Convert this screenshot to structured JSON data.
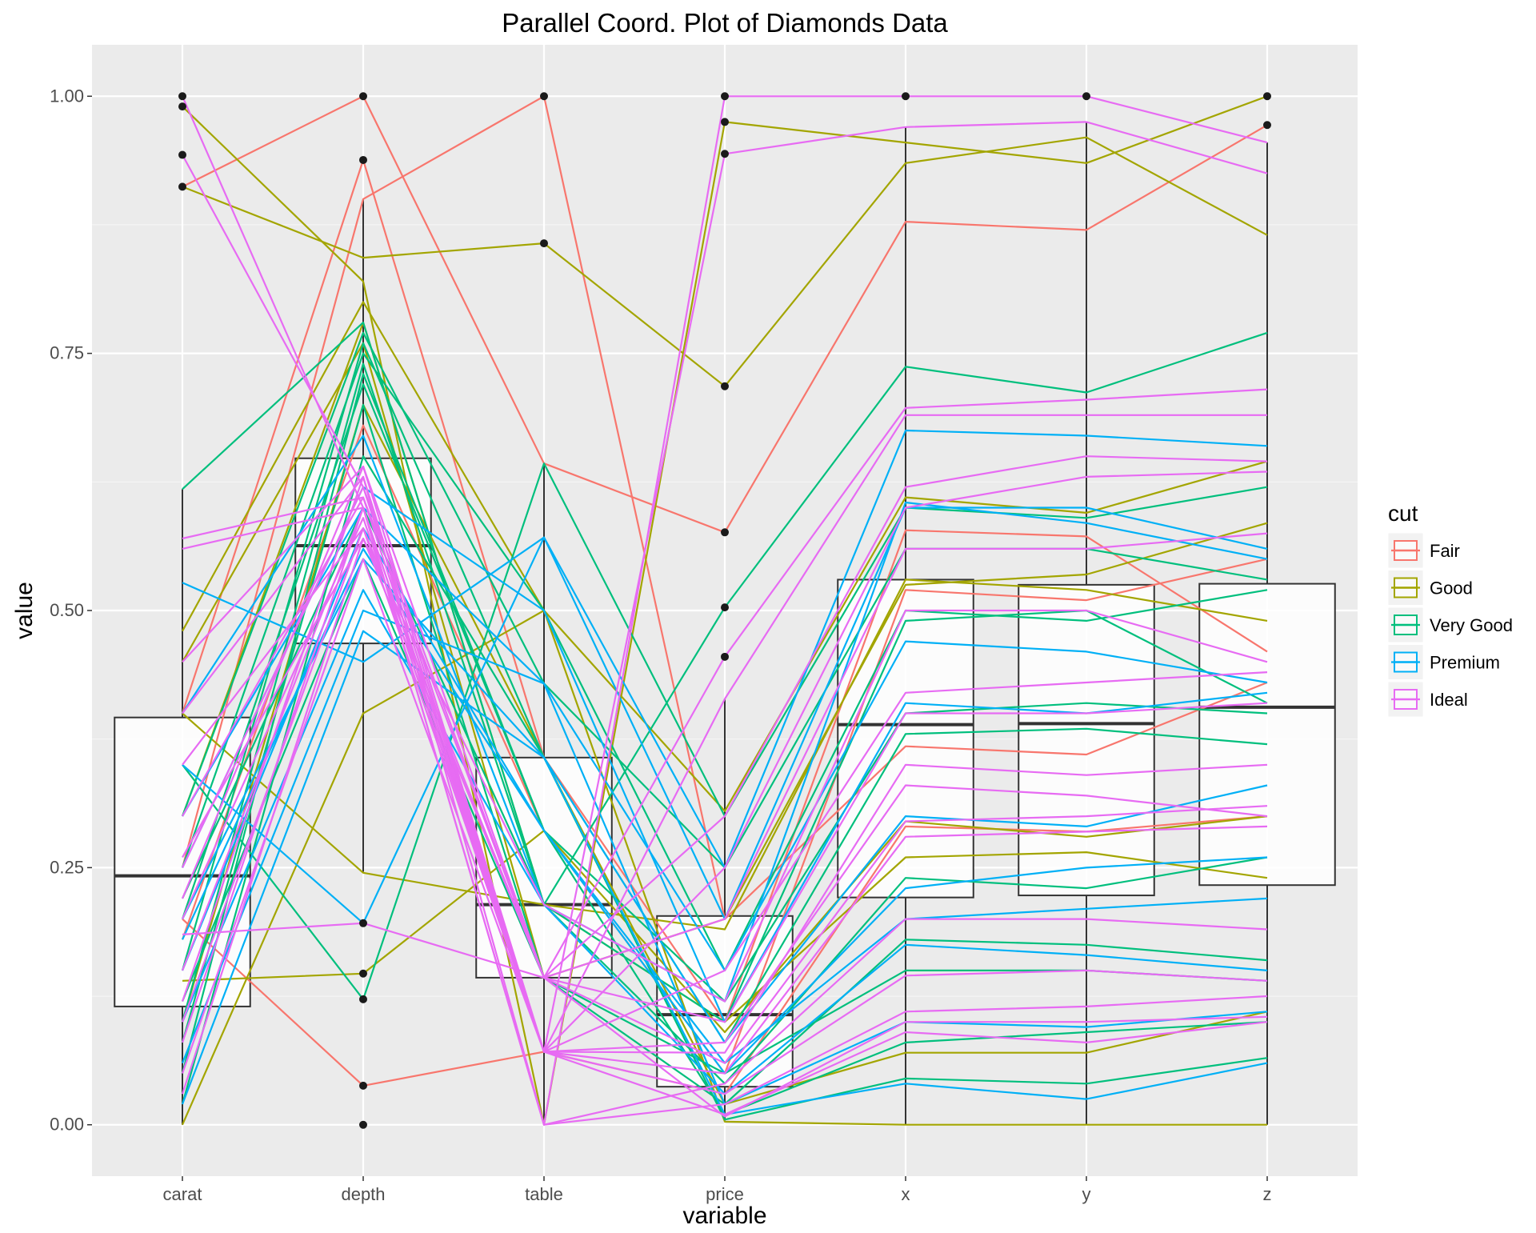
{
  "chart_data": {
    "type": "parallel-coordinates",
    "title": "Parallel Coord. Plot of Diamonds Data",
    "xlabel": "variable",
    "ylabel": "value",
    "ylim": [
      -0.05,
      1.05
    ],
    "yticks": [
      0.0,
      0.25,
      0.5,
      0.75,
      1.0
    ],
    "ytick_labels": [
      "0.00",
      "0.25",
      "0.50",
      "0.75",
      "1.00"
    ],
    "categories": [
      "carat",
      "depth",
      "table",
      "price",
      "x",
      "y",
      "z"
    ],
    "grid": true,
    "legend": {
      "title": "cut",
      "position": "right",
      "entries": [
        {
          "label": "Fair",
          "color": "#F8766D"
        },
        {
          "label": "Good",
          "color": "#A3A500"
        },
        {
          "label": "Very Good",
          "color": "#00BF7D"
        },
        {
          "label": "Premium",
          "color": "#00B0F6"
        },
        {
          "label": "Ideal",
          "color": "#E76BF3"
        }
      ]
    },
    "boxplots": [
      {
        "variable": "carat",
        "lower_whisker": 0.0,
        "q1": 0.115,
        "median": 0.242,
        "q3": 0.396,
        "upper_whisker": 0.618
      },
      {
        "variable": "depth",
        "lower_whisker": 0.246,
        "q1": 0.468,
        "median": 0.563,
        "q3": 0.648,
        "upper_whisker": 0.9
      },
      {
        "variable": "table",
        "lower_whisker": 0.0,
        "q1": 0.143,
        "median": 0.214,
        "q3": 0.357,
        "upper_whisker": 0.643
      },
      {
        "variable": "price",
        "lower_whisker": 0.004,
        "q1": 0.037,
        "median": 0.107,
        "q3": 0.203,
        "upper_whisker": 0.414
      },
      {
        "variable": "x",
        "lower_whisker": 0.0,
        "q1": 0.221,
        "median": 0.389,
        "q3": 0.53,
        "upper_whisker": 0.97
      },
      {
        "variable": "y",
        "lower_whisker": 0.0,
        "q1": 0.223,
        "median": 0.39,
        "q3": 0.525,
        "upper_whisker": 0.975
      },
      {
        "variable": "z",
        "lower_whisker": 0.0,
        "q1": 0.233,
        "median": 0.406,
        "q3": 0.526,
        "upper_whisker": 0.955
      }
    ],
    "outliers": [
      {
        "variable": "carat",
        "values": [
          1.0,
          0.99,
          0.943,
          0.912
        ]
      },
      {
        "variable": "depth",
        "values": [
          1.0,
          0.938,
          0.196,
          0.147,
          0.122,
          0.038,
          0.0
        ]
      },
      {
        "variable": "table",
        "values": [
          1.0,
          0.857
        ]
      },
      {
        "variable": "price",
        "values": [
          1.0,
          0.975,
          0.944,
          0.718,
          0.576,
          0.503,
          0.455
        ]
      },
      {
        "variable": "x",
        "values": [
          1.0
        ]
      },
      {
        "variable": "y",
        "values": [
          1.0
        ]
      },
      {
        "variable": "z",
        "values": [
          1.0,
          0.972
        ]
      }
    ],
    "series": [
      {
        "name": "Fair",
        "lines": [
          [
            0.912,
            1.0,
            0.643,
            0.576,
            0.878,
            0.87,
            0.972
          ],
          [
            0.4,
            0.938,
            0.357,
            0.1,
            0.578,
            0.572,
            0.46
          ],
          [
            0.25,
            0.9,
            1.0,
            0.2,
            0.368,
            0.36,
            0.43
          ],
          [
            0.2,
            0.038,
            0.071,
            0.03,
            0.29,
            0.285,
            0.3
          ],
          [
            0.18,
            0.68,
            0.286,
            0.05,
            0.52,
            0.51,
            0.55
          ]
        ]
      },
      {
        "name": "Good",
        "lines": [
          [
            0.99,
            0.82,
            0.0,
            0.975,
            0.955,
            0.935,
            1.0
          ],
          [
            0.912,
            0.843,
            0.857,
            0.718,
            0.935,
            0.96,
            0.865
          ],
          [
            0.48,
            0.8,
            0.5,
            0.305,
            0.61,
            0.595,
            0.645
          ],
          [
            0.4,
            0.245,
            0.214,
            0.19,
            0.53,
            0.52,
            0.49
          ],
          [
            0.14,
            0.147,
            0.286,
            0.09,
            0.295,
            0.28,
            0.3
          ],
          [
            0.0,
            0.4,
            0.5,
            0.003,
            0.0,
            0.0,
            0.0
          ],
          [
            0.3,
            0.78,
            0.214,
            0.1,
            0.26,
            0.265,
            0.24
          ],
          [
            0.1,
            0.7,
            0.357,
            0.02,
            0.07,
            0.07,
            0.11
          ],
          [
            0.45,
            0.76,
            0.143,
            0.2,
            0.525,
            0.535,
            0.585
          ]
        ]
      },
      {
        "name": "Very Good",
        "lines": [
          [
            0.618,
            0.78,
            0.214,
            0.503,
            0.737,
            0.712,
            0.77
          ],
          [
            0.35,
            0.122,
            0.643,
            0.3,
            0.6,
            0.59,
            0.62
          ],
          [
            0.25,
            0.75,
            0.5,
            0.15,
            0.5,
            0.49,
            0.52
          ],
          [
            0.2,
            0.72,
            0.286,
            0.12,
            0.4,
            0.41,
            0.4
          ],
          [
            0.15,
            0.76,
            0.357,
            0.08,
            0.38,
            0.385,
            0.37
          ],
          [
            0.1,
            0.74,
            0.214,
            0.04,
            0.24,
            0.23,
            0.26
          ],
          [
            0.08,
            0.7,
            0.143,
            0.02,
            0.18,
            0.175,
            0.16
          ],
          [
            0.05,
            0.73,
            0.286,
            0.01,
            0.08,
            0.09,
            0.1
          ],
          [
            0.02,
            0.65,
            0.357,
            0.005,
            0.045,
            0.04,
            0.065
          ],
          [
            0.3,
            0.77,
            0.429,
            0.25,
            0.56,
            0.56,
            0.53
          ],
          [
            0.22,
            0.6,
            0.214,
            0.1,
            0.49,
            0.5,
            0.41
          ],
          [
            0.12,
            0.55,
            0.143,
            0.05,
            0.15,
            0.15,
            0.14
          ]
        ]
      },
      {
        "name": "Premium",
        "lines": [
          [
            0.527,
            0.45,
            0.571,
            0.25,
            0.675,
            0.67,
            0.66
          ],
          [
            0.35,
            0.196,
            0.571,
            0.2,
            0.6,
            0.6,
            0.56
          ],
          [
            0.3,
            0.6,
            0.429,
            0.15,
            0.47,
            0.46,
            0.43
          ],
          [
            0.25,
            0.62,
            0.5,
            0.1,
            0.41,
            0.4,
            0.42
          ],
          [
            0.2,
            0.55,
            0.357,
            0.08,
            0.3,
            0.29,
            0.33
          ],
          [
            0.15,
            0.58,
            0.286,
            0.05,
            0.23,
            0.25,
            0.26
          ],
          [
            0.1,
            0.52,
            0.214,
            0.03,
            0.175,
            0.165,
            0.15
          ],
          [
            0.06,
            0.5,
            0.429,
            0.02,
            0.1,
            0.095,
            0.11
          ],
          [
            0.02,
            0.48,
            0.357,
            0.01,
            0.04,
            0.025,
            0.06
          ],
          [
            0.4,
            0.67,
            0.214,
            0.12,
            0.605,
            0.585,
            0.55
          ],
          [
            0.18,
            0.56,
            0.286,
            0.06,
            0.2,
            0.21,
            0.22
          ]
        ]
      },
      {
        "name": "Ideal",
        "lines": [
          [
            1.0,
            0.6,
            0.0,
            1.0,
            1.0,
            1.0,
            0.955
          ],
          [
            0.943,
            0.62,
            0.071,
            0.944,
            0.97,
            0.975,
            0.925
          ],
          [
            0.57,
            0.61,
            0.143,
            0.455,
            0.697,
            0.705,
            0.715
          ],
          [
            0.56,
            0.6,
            0.071,
            0.414,
            0.69,
            0.69,
            0.69
          ],
          [
            0.45,
            0.64,
            0.143,
            0.3,
            0.62,
            0.65,
            0.645
          ],
          [
            0.4,
            0.63,
            0.071,
            0.25,
            0.6,
            0.63,
            0.635
          ],
          [
            0.35,
            0.58,
            0.143,
            0.2,
            0.56,
            0.56,
            0.575
          ],
          [
            0.3,
            0.61,
            0.071,
            0.15,
            0.42,
            0.43,
            0.44
          ],
          [
            0.25,
            0.62,
            0.143,
            0.1,
            0.4,
            0.4,
            0.41
          ],
          [
            0.2,
            0.59,
            0.071,
            0.07,
            0.35,
            0.34,
            0.35
          ],
          [
            0.185,
            0.196,
            0.143,
            0.06,
            0.295,
            0.3,
            0.31
          ],
          [
            0.15,
            0.6,
            0.071,
            0.05,
            0.28,
            0.285,
            0.29
          ],
          [
            0.12,
            0.63,
            0.0,
            0.04,
            0.2,
            0.2,
            0.19
          ],
          [
            0.1,
            0.58,
            0.071,
            0.03,
            0.145,
            0.15,
            0.14
          ],
          [
            0.08,
            0.6,
            0.0,
            0.02,
            0.11,
            0.115,
            0.125
          ],
          [
            0.05,
            0.55,
            0.071,
            0.01,
            0.09,
            0.08,
            0.1
          ],
          [
            0.03,
            0.57,
            0.143,
            0.008,
            0.1,
            0.1,
            0.105
          ],
          [
            0.26,
            0.57,
            0.214,
            0.12,
            0.5,
            0.5,
            0.45
          ],
          [
            0.22,
            0.64,
            0.071,
            0.08,
            0.33,
            0.32,
            0.3
          ]
        ]
      }
    ]
  }
}
